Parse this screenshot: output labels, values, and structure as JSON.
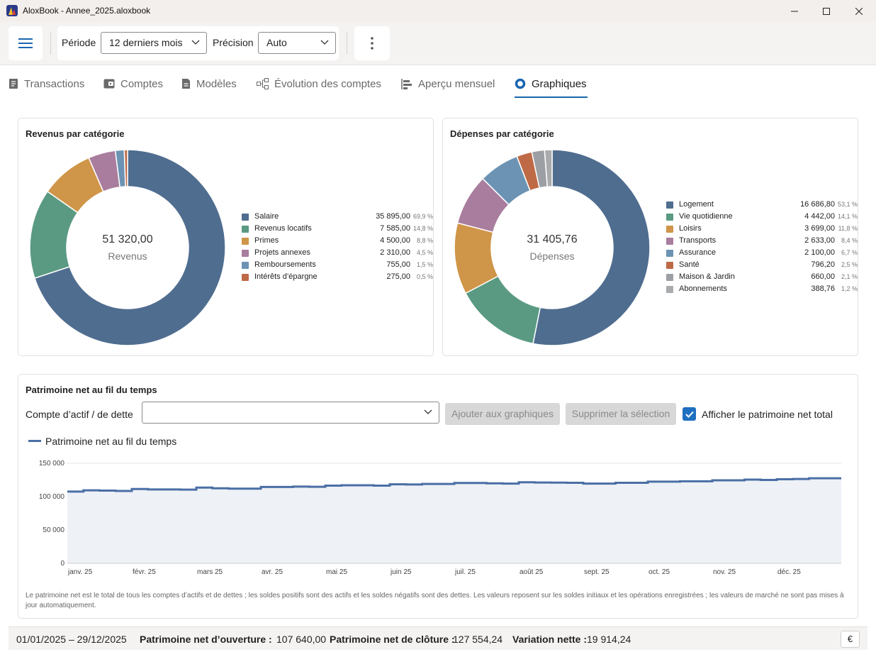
{
  "window": {
    "title": "AloxBook - Annee_2025.aloxbook"
  },
  "toolbar": {
    "period_label": "Période",
    "period_value": "12 derniers mois",
    "precision_label": "Précision",
    "precision_value": "Auto"
  },
  "tabs": [
    {
      "label": "Transactions",
      "icon": "receipt-icon"
    },
    {
      "label": "Comptes",
      "icon": "wallet-icon"
    },
    {
      "label": "Modèles",
      "icon": "document-icon"
    },
    {
      "label": "Évolution des comptes",
      "icon": "tree-icon"
    },
    {
      "label": "Aperçu mensuel",
      "icon": "bars-icon"
    },
    {
      "label": "Graphiques",
      "icon": "donut-icon",
      "active": true
    }
  ],
  "income": {
    "title": "Revenus par catégorie",
    "total": "51 320,00",
    "total_label": "Revenus",
    "items": [
      {
        "name": "Salaire",
        "value": "35 895,00",
        "pct": "69,9 %",
        "v": 35895,
        "color": "#4f6d8f"
      },
      {
        "name": "Revenus locatifs",
        "value": "7 585,00",
        "pct": "14,8 %",
        "v": 7585,
        "color": "#5a9a82"
      },
      {
        "name": "Primes",
        "value": "4 500,00",
        "pct": "8,8 %",
        "v": 4500,
        "color": "#cf9548"
      },
      {
        "name": "Projets annexes",
        "value": "2 310,00",
        "pct": "4,5 %",
        "v": 2310,
        "color": "#a97d9d"
      },
      {
        "name": "Remboursements",
        "value": "755,00",
        "pct": "1,5 %",
        "v": 755,
        "color": "#6c93b3"
      },
      {
        "name": "Intérêts d’épargne",
        "value": "275,00",
        "pct": "0,5 %",
        "v": 275,
        "color": "#bf6a47"
      }
    ]
  },
  "expenses": {
    "title": "Dépenses par catégorie",
    "total": "31 405,76",
    "total_label": "Dépenses",
    "items": [
      {
        "name": "Logement",
        "value": "16 686,80",
        "pct": "53,1 %",
        "v": 16686.8,
        "color": "#4f6d8f"
      },
      {
        "name": "Vie quotidienne",
        "value": "4 442,00",
        "pct": "14,1 %",
        "v": 4442,
        "color": "#5a9a82"
      },
      {
        "name": "Loisirs",
        "value": "3 699,00",
        "pct": "11,8 %",
        "v": 3699,
        "color": "#cf9548"
      },
      {
        "name": "Transports",
        "value": "2 633,00",
        "pct": "8,4 %",
        "v": 2633,
        "color": "#a97d9d"
      },
      {
        "name": "Assurance",
        "value": "2 100,00",
        "pct": "6,7 %",
        "v": 2100,
        "color": "#6c93b3"
      },
      {
        "name": "Santé",
        "value": "796,20",
        "pct": "2,5 %",
        "v": 796.2,
        "color": "#bf6a47"
      },
      {
        "name": "Maison & Jardin",
        "value": "660,00",
        "pct": "2,1 %",
        "v": 660,
        "color": "#9c9fa3"
      },
      {
        "name": "Abonnements",
        "value": "388,76",
        "pct": "1,2 %",
        "v": 388.76,
        "color": "#a9abad"
      }
    ]
  },
  "networth": {
    "title": "Patrimoine net au fil du temps",
    "account_label": "Compte d’actif / de dette",
    "account_value": "",
    "add_button": "Ajouter aux graphiques",
    "remove_button": "Supprimer la sélection",
    "show_total_label": "Afficher le patrimoine net total",
    "show_total_checked": true,
    "note": "Le patrimoine net est le total de tous les comptes d’actifs et de dettes ; les soldes positifs sont des actifs et les soldes négatifs sont des dettes. Les valeurs reposent sur les soldes initiaux et les opérations enregistrées ; les valeurs de marché ne sont pas mises à jour automatiquement."
  },
  "chart_data": {
    "type": "area",
    "legend": "Patrimoine net au fil du temps",
    "legend_position": "top-left",
    "x_labels": [
      "janv. 25",
      "févr. 25",
      "mars 25",
      "avr. 25",
      "mai 25",
      "juin 25",
      "juil. 25",
      "août 25",
      "sept. 25",
      "oct. 25",
      "nov. 25",
      "déc. 25"
    ],
    "y_ticks": [
      "0",
      "50 000",
      "100 000",
      "150 000"
    ],
    "ylim": [
      0,
      150000
    ],
    "grid": true,
    "series": [
      {
        "name": "Patrimoine net au fil du temps",
        "color": "#4a6fa5",
        "values": [
          107640,
          109500,
          109000,
          108500,
          111500,
          110800,
          110800,
          110500,
          113500,
          112500,
          112000,
          112000,
          114500,
          114500,
          115000,
          114800,
          116500,
          117000,
          117000,
          116500,
          118500,
          118200,
          119000,
          119000,
          120500,
          120500,
          120000,
          119500,
          121500,
          121200,
          121000,
          120800,
          119500,
          119500,
          120800,
          120800,
          122500,
          122500,
          123000,
          123000,
          124500,
          124500,
          125500,
          125000,
          126000,
          126500,
          127500,
          127554
        ]
      }
    ]
  },
  "footer": {
    "range": "01/01/2025 – 29/12/2025",
    "opening_label": "Patrimoine net d’ouverture :",
    "opening_value": "107 640,00",
    "closing_label": "Patrimoine net de clôture :",
    "closing_value": "127 554,24",
    "variation_label": "Variation nette :",
    "variation_value": "19 914,24",
    "currency": "€"
  }
}
